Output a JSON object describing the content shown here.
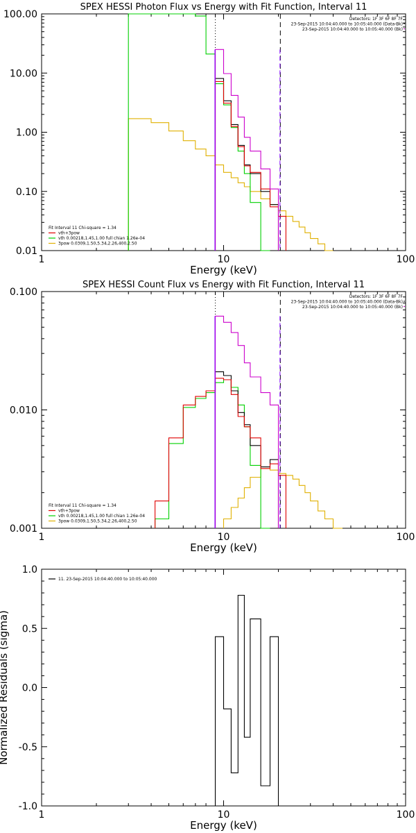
{
  "colors": {
    "black": "#000000",
    "red": "#e00000",
    "green": "#00d000",
    "yellow": "#e0b000",
    "magenta": "#cc00cc",
    "purple": "#7f00ff"
  },
  "chart_data": [
    {
      "type": "line",
      "title": "SPEX HESSI Photon Flux vs Energy with Fit Function, Interval 11",
      "xlabel": "Energy (keV)",
      "ylabel": "",
      "xscale": "log",
      "yscale": "log",
      "xlim": [
        1,
        100
      ],
      "ylim": [
        0.01,
        100
      ],
      "x_tick_labels": [
        "1",
        "10",
        "100"
      ],
      "y_ticks": [
        0.01,
        0.1,
        1,
        10,
        100
      ],
      "y_tick_labels": [
        "0.01",
        "0.10",
        "1.00",
        "10.00",
        "100.00"
      ],
      "top_right_notes": [
        "Detectors: 1F 3F 6F 8F 7F",
        "23-Sep-2015 10:04:40.000 to 10:05:40.000 (Data-Bk)",
        "23-Sep-2015 10:04:40.000 to 10:05:40.000 (Bk)"
      ],
      "legend_lines": [
        "Fit Interval 11   Chi-square = 1.34",
        "vth+3pow",
        "vth 0.00218,1.45,1.00  full chian 1.26e-04",
        "3pow 0.0309,1.50,5.34,2.26,400,2.50"
      ],
      "markers": [
        {
          "x": 9,
          "style": "dotted"
        },
        {
          "x": 20.5,
          "style": "dashed"
        }
      ],
      "series": [
        {
          "color_key": "yellow",
          "bin_edges": [
            3,
            4,
            5,
            6,
            7,
            8,
            9,
            10,
            11,
            12,
            13,
            14,
            16,
            18,
            20,
            22,
            24,
            26,
            28,
            30,
            33,
            36,
            40
          ],
          "values": [
            1.7,
            1.45,
            1.05,
            0.72,
            0.52,
            0.4,
            0.28,
            0.21,
            0.17,
            0.14,
            0.12,
            0.1,
            0.075,
            0.06,
            0.047,
            0.038,
            0.031,
            0.025,
            0.02,
            0.016,
            0.013,
            0.01
          ]
        },
        {
          "color_key": "green",
          "bin_edges": [
            3,
            7,
            8,
            9,
            10,
            11,
            12,
            13,
            14,
            16,
            18
          ],
          "values": [
            100,
            92,
            21,
            6.6,
            2.9,
            1.2,
            0.48,
            0.2,
            0.065,
            0.01
          ]
        },
        {
          "color_key": "black",
          "bin_edges": [
            9,
            10,
            11,
            12,
            13,
            14,
            16,
            18,
            20
          ],
          "values": [
            8.1,
            3.4,
            1.35,
            0.6,
            0.28,
            0.2,
            0.1,
            0.06
          ]
        },
        {
          "color_key": "red",
          "bin_edges": [
            9,
            10,
            11,
            12,
            13,
            14,
            16,
            18,
            20,
            22
          ],
          "values": [
            7.2,
            3.1,
            1.25,
            0.57,
            0.27,
            0.21,
            0.11,
            0.055,
            0.038
          ]
        },
        {
          "color_key": "magenta",
          "bin_edges": [
            9,
            10,
            11,
            12,
            13,
            14,
            16,
            18,
            20
          ],
          "values": [
            25,
            9.8,
            4.2,
            1.8,
            0.82,
            0.48,
            0.24,
            0.11
          ]
        }
      ]
    },
    {
      "type": "line",
      "title": "SPEX HESSI Count Flux vs Energy with Fit Function, Interval 11",
      "xlabel": "Energy (keV)",
      "ylabel": "",
      "xscale": "log",
      "yscale": "log",
      "xlim": [
        1,
        100
      ],
      "ylim": [
        0.001,
        0.1
      ],
      "x_tick_labels": [
        "1",
        "10",
        "100"
      ],
      "y_ticks": [
        0.001,
        0.01,
        0.1
      ],
      "y_tick_labels": [
        "0.001",
        "0.010",
        "0.100"
      ],
      "top_right_notes": [
        "Detectors: 1F 3F 6F 8F 7F",
        "23-Sep-2015 10:04:40.000 to 10:05:40.000 (Data-Bk)",
        "23-Sep-2015 10:04:40.000 to 10:05:40.000 (Bk)"
      ],
      "legend_lines": [
        "Fit Interval 11   Chi-square = 1.34",
        "vth+3pow",
        "vth 0.00218,1.45,1.00  full chian 1.26e-04",
        "3pow 0.0309,1.50,5.34,2.26,400,2.50"
      ],
      "markers": [
        {
          "x": 9,
          "style": "dotted"
        },
        {
          "x": 20.5,
          "style": "dashed"
        }
      ],
      "series": [
        {
          "color_key": "yellow",
          "bin_edges": [
            10,
            11,
            12,
            13,
            14,
            16,
            18,
            20,
            22,
            24,
            26,
            28,
            30,
            33,
            36,
            40,
            45
          ],
          "values": [
            0.0012,
            0.0015,
            0.0018,
            0.0022,
            0.0027,
            0.0032,
            0.0031,
            0.0029,
            0.0028,
            0.0026,
            0.0023,
            0.002,
            0.0017,
            0.0014,
            0.0012,
            0.001
          ]
        },
        {
          "color_key": "green",
          "bin_edges": [
            4.2,
            5,
            6,
            7,
            8,
            9,
            10,
            11,
            12,
            13,
            14,
            16,
            18
          ],
          "values": [
            0.0012,
            0.0052,
            0.0105,
            0.0125,
            0.014,
            0.017,
            0.018,
            0.0155,
            0.011,
            0.0072,
            0.0034,
            0.001
          ]
        },
        {
          "color_key": "black",
          "bin_edges": [
            9,
            10,
            11,
            12,
            13,
            14,
            16,
            18,
            20
          ],
          "values": [
            0.021,
            0.0195,
            0.0145,
            0.0095,
            0.0075,
            0.005,
            0.0033,
            0.0038
          ]
        },
        {
          "color_key": "red",
          "bin_edges": [
            4.2,
            5,
            6,
            7,
            8,
            9,
            10,
            11,
            12,
            13,
            14,
            16,
            18,
            20,
            22
          ],
          "values": [
            0.0017,
            0.0058,
            0.011,
            0.013,
            0.0145,
            0.0185,
            0.018,
            0.0135,
            0.0088,
            0.0072,
            0.0058,
            0.0032,
            0.0035,
            0.0028
          ]
        },
        {
          "color_key": "magenta",
          "bin_edges": [
            9,
            10,
            11,
            12,
            13,
            14,
            16,
            18,
            20
          ],
          "values": [
            0.062,
            0.055,
            0.045,
            0.035,
            0.025,
            0.019,
            0.014,
            0.011
          ]
        }
      ]
    },
    {
      "type": "line",
      "title": "",
      "xlabel": "Energy (keV)",
      "ylabel": "Normalized Residuals (sigma)",
      "xscale": "log",
      "yscale": "linear",
      "xlim": [
        1,
        100
      ],
      "ylim": [
        -1,
        1
      ],
      "x_tick_labels": [
        "1",
        "10",
        "100"
      ],
      "y_ticks": [
        -1,
        -0.5,
        0,
        0.5,
        1
      ],
      "y_tick_labels": [
        "-1.0",
        "-0.5",
        "0.0",
        "0.5",
        "1.0"
      ],
      "legend_lines": [
        "11. 23-Sep-2015 10:04:40.000 to 10:05:40.000"
      ],
      "series": [
        {
          "color_key": "black",
          "bin_edges": [
            9,
            10,
            11,
            12,
            13,
            14,
            16,
            18,
            20
          ],
          "values": [
            0.43,
            -0.18,
            -0.72,
            0.78,
            -0.42,
            0.58,
            -0.83,
            0.43
          ]
        }
      ]
    }
  ]
}
